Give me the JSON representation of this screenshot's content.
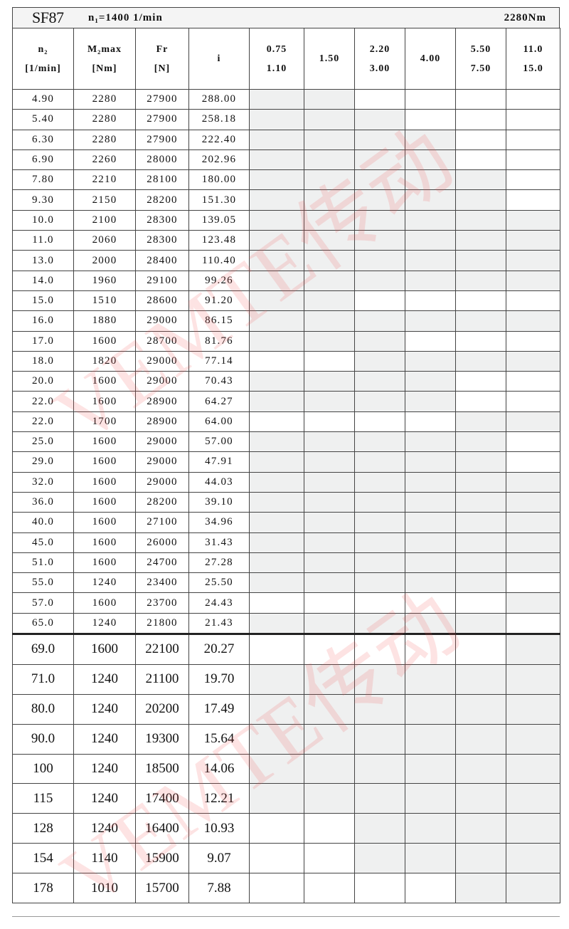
{
  "title": {
    "model": "SF87",
    "input_speed": "n₁=1400 1/min",
    "max_torque": "2280Nm"
  },
  "headers": {
    "n2": [
      "n₂",
      "[1/min]"
    ],
    "m2max": [
      "M₂max",
      "[Nm]"
    ],
    "fr": [
      "Fr",
      "[N]"
    ],
    "i": "i",
    "power_columns": [
      [
        "0.75",
        "1.10"
      ],
      [
        "1.50"
      ],
      [
        "2.20",
        "3.00"
      ],
      [
        "4.00"
      ],
      [
        "5.50",
        "7.50"
      ],
      [
        "11.0",
        "15.0"
      ]
    ]
  },
  "shading_colors": {
    "available": "#eff0f0",
    "unavailable": "#ffffff"
  },
  "rows_upper": [
    {
      "n2": "4.90",
      "m2max": "2280",
      "fr": "27900",
      "i": "288.00",
      "avail": "110000"
    },
    {
      "n2": "5.40",
      "m2max": "2280",
      "fr": "27900",
      "i": "258.18",
      "avail": "111000"
    },
    {
      "n2": "6.30",
      "m2max": "2280",
      "fr": "27900",
      "i": "222.40",
      "avail": "111100"
    },
    {
      "n2": "6.90",
      "m2max": "2260",
      "fr": "28000",
      "i": "202.96",
      "avail": "111100"
    },
    {
      "n2": "7.80",
      "m2max": "2210",
      "fr": "28100",
      "i": "180.00",
      "avail": "111110"
    },
    {
      "n2": "9.30",
      "m2max": "2150",
      "fr": "28200",
      "i": "151.30",
      "avail": "111110"
    },
    {
      "n2": "10.0",
      "m2max": "2100",
      "fr": "28300",
      "i": "139.05",
      "avail": "111111"
    },
    {
      "n2": "11.0",
      "m2max": "2060",
      "fr": "28300",
      "i": "123.48",
      "avail": "111111"
    },
    {
      "n2": "13.0",
      "m2max": "2000",
      "fr": "28400",
      "i": "110.40",
      "avail": "111111"
    },
    {
      "n2": "14.0",
      "m2max": "1960",
      "fr": "29100",
      "i": "99.26",
      "avail": "111111"
    },
    {
      "n2": "15.0",
      "m2max": "1510",
      "fr": "28600",
      "i": "91.20",
      "avail": "110000"
    },
    {
      "n2": "16.0",
      "m2max": "1880",
      "fr": "29000",
      "i": "86.15",
      "avail": "111111"
    },
    {
      "n2": "17.0",
      "m2max": "1600",
      "fr": "28700",
      "i": "81.76",
      "avail": "111000"
    },
    {
      "n2": "18.0",
      "m2max": "1820",
      "fr": "29000",
      "i": "77.14",
      "avail": "001111"
    },
    {
      "n2": "20.0",
      "m2max": "1600",
      "fr": "29000",
      "i": "70.43",
      "avail": "111100"
    },
    {
      "n2": "22.0",
      "m2max": "1600",
      "fr": "28900",
      "i": "64.27",
      "avail": "111100"
    },
    {
      "n2": "22.0",
      "m2max": "1700",
      "fr": "28900",
      "i": "64.00",
      "avail": "000011"
    },
    {
      "n2": "25.0",
      "m2max": "1600",
      "fr": "29000",
      "i": "57.00",
      "avail": "111110"
    },
    {
      "n2": "29.0",
      "m2max": "1600",
      "fr": "29000",
      "i": "47.91",
      "avail": "111110"
    },
    {
      "n2": "32.0",
      "m2max": "1600",
      "fr": "29000",
      "i": "44.03",
      "avail": "111111"
    },
    {
      "n2": "36.0",
      "m2max": "1600",
      "fr": "28200",
      "i": "39.10",
      "avail": "111111"
    },
    {
      "n2": "40.0",
      "m2max": "1600",
      "fr": "27100",
      "i": "34.96",
      "avail": "111111"
    },
    {
      "n2": "45.0",
      "m2max": "1600",
      "fr": "26000",
      "i": "31.43",
      "avail": "111111"
    },
    {
      "n2": "51.0",
      "m2max": "1600",
      "fr": "24700",
      "i": "27.28",
      "avail": "111111"
    },
    {
      "n2": "55.0",
      "m2max": "1240",
      "fr": "23400",
      "i": "25.50",
      "avail": "111110"
    },
    {
      "n2": "57.0",
      "m2max": "1600",
      "fr": "23700",
      "i": "24.43",
      "avail": "000001"
    },
    {
      "n2": "65.0",
      "m2max": "1240",
      "fr": "21800",
      "i": "21.43",
      "avail": "111110"
    }
  ],
  "rows_lower": [
    {
      "n2": "69.0",
      "m2max": "1600",
      "fr": "22100",
      "i": "20.27",
      "avail": "000001"
    },
    {
      "n2": "71.0",
      "m2max": "1240",
      "fr": "21100",
      "i": "19.70",
      "avail": "111111"
    },
    {
      "n2": "80.0",
      "m2max": "1240",
      "fr": "20200",
      "i": "17.49",
      "avail": "111111"
    },
    {
      "n2": "90.0",
      "m2max": "1240",
      "fr": "19300",
      "i": "15.64",
      "avail": "111111"
    },
    {
      "n2": "100",
      "m2max": "1240",
      "fr": "18500",
      "i": "14.06",
      "avail": "111111"
    },
    {
      "n2": "115",
      "m2max": "1240",
      "fr": "17400",
      "i": "12.21",
      "avail": "111111"
    },
    {
      "n2": "128",
      "m2max": "1240",
      "fr": "16400",
      "i": "10.93",
      "avail": "001111"
    },
    {
      "n2": "154",
      "m2max": "1140",
      "fr": "15900",
      "i": "9.07",
      "avail": "001111"
    },
    {
      "n2": "178",
      "m2max": "1010",
      "fr": "15700",
      "i": "7.88",
      "avail": "000011"
    }
  ],
  "watermark": "VEMTE传动"
}
